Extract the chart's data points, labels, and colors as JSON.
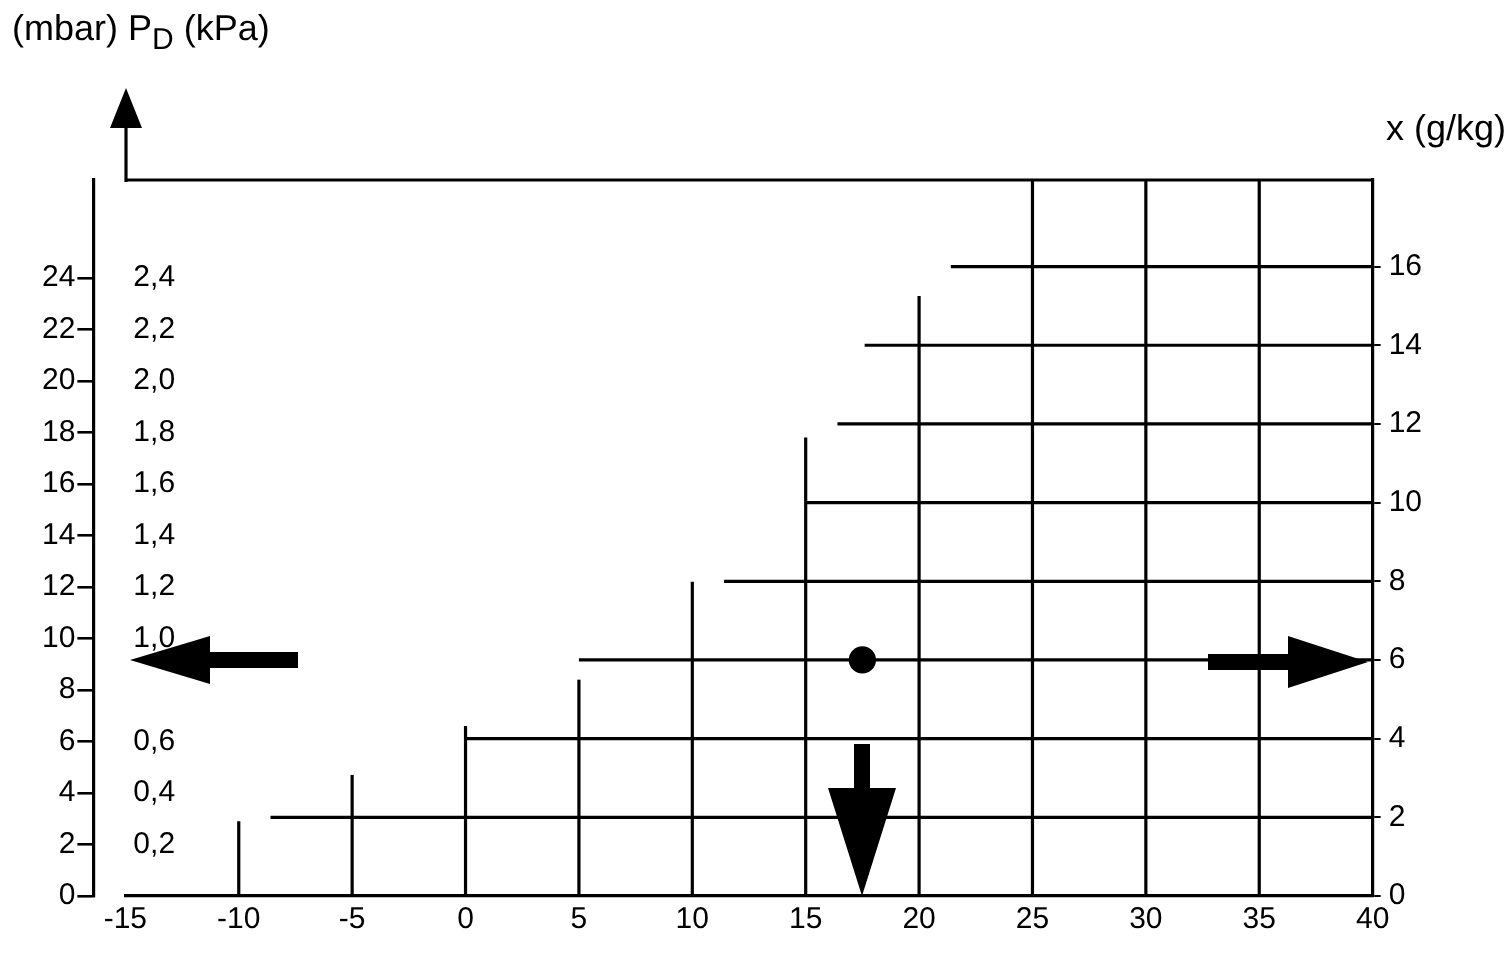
{
  "chart_data": {
    "type": "line",
    "ylabel": "(mbar) P$_{D}$ (kPa)",
    "y2label": "x (g/kg)",
    "xlim": [
      -15,
      40
    ],
    "xticks": [
      -15,
      -10,
      -5,
      0,
      5,
      10,
      15,
      20,
      25,
      30,
      35,
      40
    ],
    "ylim": [
      0,
      27.8
    ],
    "yticks": [
      0,
      2,
      4,
      6,
      8,
      10,
      12,
      14,
      16,
      18,
      20,
      22,
      24
    ],
    "y2lim": [
      0,
      18.2
    ],
    "y2ticks": [
      0,
      2,
      4,
      6,
      8,
      10,
      12,
      14,
      16
    ],
    "y3lim": [
      0,
      2.78
    ],
    "y3ticks": [
      {
        "value": 0.2,
        "label": "0,2"
      },
      {
        "value": 0.4,
        "label": "0,4"
      },
      {
        "value": 0.6,
        "label": "0,6"
      },
      {
        "value": 1.0,
        "label": "1,0"
      },
      {
        "value": 1.2,
        "label": "1,2"
      },
      {
        "value": 1.4,
        "label": "1,4"
      },
      {
        "value": 1.6,
        "label": "1,6"
      },
      {
        "value": 1.8,
        "label": "1,8"
      },
      {
        "value": 2.0,
        "label": "2,0"
      },
      {
        "value": 2.2,
        "label": "2,2"
      },
      {
        "value": 2.4,
        "label": "2,4"
      }
    ],
    "grid": false,
    "legend": false,
    "marker": "none",
    "line_style": "solid",
    "series": [
      {
        "type": "line",
        "color": "#000000",
        "x": [
          -10,
          -10
        ],
        "values": [
          0,
          2.9
        ]
      },
      {
        "type": "line",
        "color": "#000000",
        "x": [
          -5,
          -5
        ],
        "values": [
          0,
          4.7
        ]
      },
      {
        "type": "line",
        "color": "#000000",
        "x": [
          0,
          0
        ],
        "values": [
          0,
          6.6
        ]
      },
      {
        "type": "line",
        "color": "#000000",
        "x": [
          5,
          5
        ],
        "values": [
          0,
          8.4
        ]
      },
      {
        "type": "line",
        "color": "#000000",
        "x": [
          10,
          10
        ],
        "values": [
          0,
          12.2
        ]
      },
      {
        "type": "line",
        "color": "#000000",
        "x": [
          15,
          15
        ],
        "values": [
          0,
          17.8
        ]
      },
      {
        "type": "line",
        "color": "#000000",
        "x": [
          20,
          20
        ],
        "values": [
          0,
          23.3
        ]
      },
      {
        "type": "line",
        "color": "#000000",
        "x": [
          25,
          25
        ],
        "values": [
          0,
          27.8
        ]
      },
      {
        "type": "line",
        "color": "#000000",
        "x": [
          30,
          30
        ],
        "values": [
          0,
          27.8
        ]
      },
      {
        "type": "line",
        "color": "#000000",
        "x": [
          35,
          35
        ],
        "values": [
          0,
          27.8
        ]
      },
      {
        "type": "line",
        "color": "#000000",
        "axis": "y2",
        "x": [
          -8.6,
          40
        ],
        "values": [
          2,
          2
        ]
      },
      {
        "type": "line",
        "color": "#000000",
        "axis": "y2",
        "x": [
          0,
          40
        ],
        "values": [
          4,
          4
        ]
      },
      {
        "type": "line",
        "color": "#000000",
        "axis": "y2",
        "x": [
          5,
          40
        ],
        "values": [
          6,
          6
        ]
      },
      {
        "type": "line",
        "color": "#000000",
        "axis": "y2",
        "x": [
          11.4,
          40
        ],
        "values": [
          8,
          8
        ]
      },
      {
        "type": "line",
        "color": "#000000",
        "axis": "y2",
        "x": [
          15,
          40
        ],
        "values": [
          10,
          10
        ]
      },
      {
        "type": "line",
        "color": "#000000",
        "axis": "y2",
        "x": [
          16.4,
          40
        ],
        "values": [
          12,
          12
        ]
      },
      {
        "type": "line",
        "color": "#000000",
        "axis": "y2",
        "x": [
          17.6,
          40
        ],
        "values": [
          14,
          14
        ]
      },
      {
        "type": "line",
        "color": "#000000",
        "axis": "y2",
        "x": [
          21.4,
          40
        ],
        "values": [
          16,
          16
        ]
      },
      {
        "type": "scatter",
        "color": "#000000",
        "axis": "y2",
        "marker": "circle",
        "x": [
          17.5
        ],
        "values": [
          6
        ]
      }
    ]
  }
}
